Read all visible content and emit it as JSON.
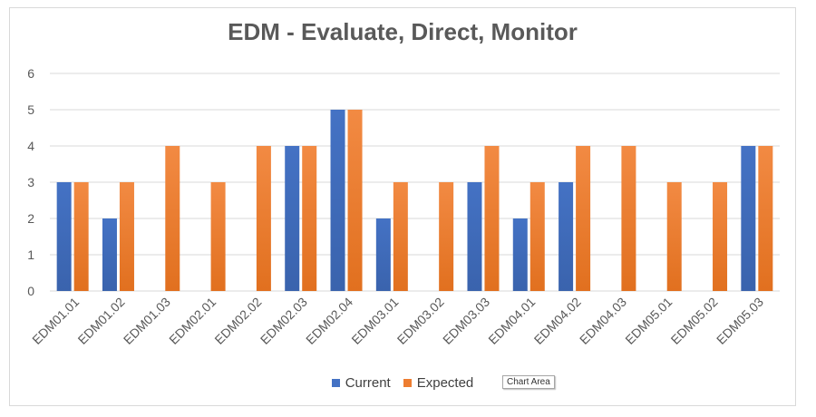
{
  "chart_data": {
    "type": "bar",
    "title": "EDM - Evaluate, Direct, Monitor",
    "categories": [
      "EDM01.01",
      "EDM01.02",
      "EDM01.03",
      "EDM02.01",
      "EDM02.02",
      "EDM02.03",
      "EDM02.04",
      "EDM03.01",
      "EDM03.02",
      "EDM03.03",
      "EDM04.01",
      "EDM04.02",
      "EDM04.03",
      "EDM05.01",
      "EDM05.02",
      "EDM05.03"
    ],
    "series": [
      {
        "name": "Current",
        "color": "#4472c4",
        "values": [
          3,
          2,
          0,
          0,
          0,
          4,
          5,
          2,
          0,
          3,
          2,
          3,
          0,
          0,
          0,
          4
        ]
      },
      {
        "name": "Expected",
        "color": "#ed7d31",
        "values": [
          3,
          3,
          4,
          3,
          4,
          4,
          5,
          3,
          3,
          4,
          3,
          4,
          4,
          3,
          3,
          4
        ]
      }
    ],
    "ylim": [
      0,
      6
    ],
    "yticks": [
      0,
      1,
      2,
      3,
      4,
      5,
      6
    ],
    "grid": true,
    "legend": "bottom",
    "xlabel": "",
    "ylabel": ""
  },
  "tooltip": {
    "text": "Chart Area"
  }
}
